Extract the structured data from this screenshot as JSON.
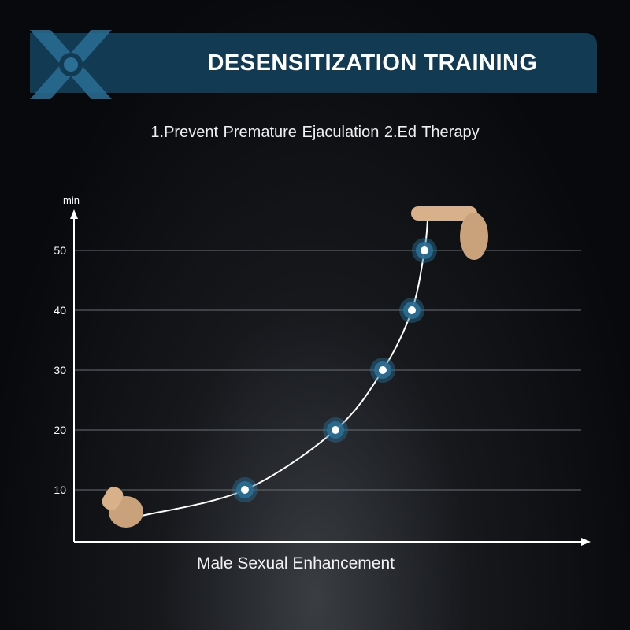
{
  "header": {
    "title": "DESENSITIZATION TRAINING",
    "logo_letter": "X"
  },
  "subtitle": "1.Prevent Premature Ejaculation   2.Ed Therapy",
  "chart_data": {
    "type": "line",
    "title": "DESENSITIZATION TRAINING",
    "xlabel": "Male Sexual Enhancement",
    "ylabel": "min",
    "ylim": [
      0,
      55
    ],
    "yticks": [
      "10",
      "20",
      "30",
      "40",
      "50"
    ],
    "values": [
      10,
      20,
      30,
      40,
      50
    ],
    "grid": true,
    "colors": {
      "line": "#ffffff",
      "marker": "#2a6f95",
      "banner": "#123a52"
    }
  }
}
